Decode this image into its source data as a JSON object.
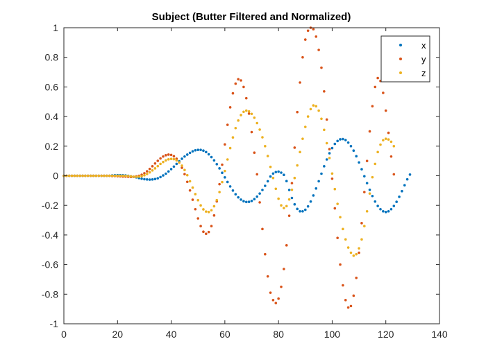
{
  "chart_data": {
    "type": "scatter",
    "title": "Subject (Butter Filtered and Normalized)",
    "xlabel": "",
    "ylabel": "",
    "xlim": [
      0,
      140
    ],
    "ylim": [
      -1,
      1
    ],
    "xticks": [
      0,
      20,
      40,
      60,
      80,
      100,
      120,
      140
    ],
    "yticks": [
      -1,
      -0.8,
      -0.6,
      -0.4,
      -0.2,
      0,
      0.2,
      0.4,
      0.6,
      0.8,
      1
    ],
    "xtick_labels": [
      "0",
      "20",
      "40",
      "60",
      "80",
      "100",
      "120",
      "140"
    ],
    "ytick_labels": [
      "-1",
      "-0.8",
      "-0.6",
      "-0.4",
      "-0.2",
      "0",
      "0.2",
      "0.4",
      "0.6",
      "0.8",
      "1"
    ],
    "grid": false,
    "legend_position": "top-right",
    "x": [
      0,
      1,
      2,
      3,
      4,
      5,
      6,
      7,
      8,
      9,
      10,
      11,
      12,
      13,
      14,
      15,
      16,
      17,
      18,
      19,
      20,
      21,
      22,
      23,
      24,
      25,
      26,
      27,
      28,
      29,
      30,
      31,
      32,
      33,
      34,
      35,
      36,
      37,
      38,
      39,
      40,
      41,
      42,
      43,
      44,
      45,
      46,
      47,
      48,
      49,
      50,
      51,
      52,
      53,
      54,
      55,
      56,
      57,
      58,
      59,
      60,
      61,
      62,
      63,
      64,
      65,
      66,
      67,
      68,
      69,
      70,
      71,
      72,
      73,
      74,
      75,
      76,
      77,
      78,
      79,
      80,
      81,
      82,
      83,
      84,
      85,
      86,
      87,
      88,
      89,
      90,
      91,
      92,
      93,
      94,
      95,
      96,
      97,
      98,
      99,
      100,
      101,
      102,
      103,
      104,
      105,
      106,
      107,
      108,
      109,
      110,
      111,
      112,
      113,
      114,
      115,
      116,
      117,
      118,
      119,
      120,
      121,
      122,
      123,
      124,
      125,
      126,
      127,
      128,
      129
    ],
    "series": [
      {
        "name": "x",
        "color": "#0072BD",
        "values": [
          0,
          0,
          0,
          0,
          0,
          0,
          0,
          0,
          0,
          0,
          0,
          0,
          0,
          0,
          0,
          0,
          0,
          0,
          0.002,
          0.003,
          0.004,
          0.004,
          0.003,
          0.002,
          0,
          -0.003,
          -0.007,
          -0.011,
          -0.016,
          -0.02,
          -0.023,
          -0.025,
          -0.026,
          -0.025,
          -0.022,
          -0.017,
          -0.009,
          0.002,
          0.014,
          0.029,
          0.045,
          0.062,
          0.08,
          0.098,
          0.115,
          0.13,
          0.143,
          0.155,
          0.165,
          0.172,
          0.175,
          0.175,
          0.17,
          0.16,
          0.145,
          0.126,
          0.104,
          0.078,
          0.05,
          0.02,
          -0.011,
          -0.042,
          -0.072,
          -0.1,
          -0.125,
          -0.146,
          -0.161,
          -0.172,
          -0.177,
          -0.176,
          -0.17,
          -0.158,
          -0.141,
          -0.12,
          -0.096,
          -0.068,
          -0.037,
          -0.005,
          0.015,
          0.025,
          0.028,
          0.021,
          0.006,
          -0.036,
          -0.096,
          -0.15,
          -0.193,
          -0.224,
          -0.24,
          -0.24,
          -0.23,
          -0.207,
          -0.174,
          -0.133,
          -0.086,
          -0.037,
          0.014,
          0.064,
          0.11,
          0.152,
          0.187,
          0.215,
          0.235,
          0.246,
          0.248,
          0.241,
          0.224,
          0.2,
          0.17,
          0.132,
          0.09,
          0.044,
          -0.003,
          -0.05,
          -0.095,
          -0.137,
          -0.174,
          -0.204,
          -0.226,
          -0.24,
          -0.245,
          -0.24,
          -0.226,
          -0.204,
          -0.176,
          -0.142,
          -0.104,
          -0.064,
          -0.024,
          0.008
        ]
      },
      {
        "name": "y",
        "color": "#D95319",
        "values": [
          0,
          0,
          0,
          0,
          0,
          0,
          0,
          0,
          0,
          0,
          0,
          0,
          0,
          0,
          0,
          0,
          0,
          0,
          -0.002,
          -0.002,
          -0.003,
          -0.004,
          -0.005,
          -0.006,
          -0.007,
          -0.008,
          -0.007,
          -0.004,
          0,
          0.007,
          0.017,
          0.03,
          0.046,
          0.064,
          0.083,
          0.101,
          0.117,
          0.13,
          0.139,
          0.143,
          0.141,
          0.132,
          0.115,
          0.089,
          0.054,
          0.011,
          -0.041,
          -0.099,
          -0.162,
          -0.226,
          -0.288,
          -0.34,
          -0.378,
          -0.392,
          -0.38,
          -0.34,
          -0.268,
          -0.173,
          -0.057,
          0.075,
          0.212,
          0.344,
          0.462,
          0.557,
          0.622,
          0.652,
          0.644,
          0.6,
          0.524,
          0.42,
          0.295,
          0.156,
          0.01,
          -0.18,
          -0.36,
          -0.53,
          -0.68,
          -0.79,
          -0.84,
          -0.86,
          -0.83,
          -0.75,
          -0.63,
          -0.47,
          -0.27,
          -0.05,
          0.19,
          0.43,
          0.63,
          0.8,
          0.92,
          0.98,
          1.0,
          0.99,
          0.94,
          0.85,
          0.73,
          0.57,
          0.38,
          0.18,
          -0.02,
          -0.22,
          -0.42,
          -0.6,
          -0.74,
          -0.84,
          -0.89,
          -0.88,
          -0.81,
          -0.69,
          -0.52,
          -0.32,
          -0.11,
          0.1,
          0.3,
          0.47,
          0.6,
          0.66,
          0.64,
          0.56,
          0.44,
          0.29,
          0.13,
          0.01
        ]
      },
      {
        "name": "z",
        "color": "#EDB120",
        "values": [
          0,
          0,
          0,
          0,
          0,
          0,
          0,
          0,
          0,
          0,
          0,
          0,
          0,
          0,
          0,
          0,
          0,
          0,
          0,
          0,
          0,
          0,
          0,
          -0.001,
          -0.002,
          -0.004,
          -0.006,
          -0.007,
          -0.006,
          -0.003,
          0.003,
          0.012,
          0.023,
          0.036,
          0.05,
          0.065,
          0.08,
          0.093,
          0.104,
          0.111,
          0.114,
          0.112,
          0.104,
          0.09,
          0.068,
          0.039,
          0.004,
          -0.037,
          -0.08,
          -0.124,
          -0.165,
          -0.2,
          -0.227,
          -0.242,
          -0.245,
          -0.233,
          -0.206,
          -0.165,
          -0.11,
          -0.043,
          0.032,
          0.11,
          0.187,
          0.259,
          0.322,
          0.373,
          0.41,
          0.432,
          0.44,
          0.435,
          0.418,
          0.392,
          0.356,
          0.312,
          0.26,
          0.2,
          0.133,
          0.06,
          -0.015,
          -0.088,
          -0.155,
          -0.2,
          -0.218,
          -0.205,
          -0.16,
          -0.095,
          -0.015,
          0.07,
          0.16,
          0.25,
          0.33,
          0.4,
          0.45,
          0.475,
          0.47,
          0.44,
          0.385,
          0.31,
          0.22,
          0.12,
          0.015,
          -0.09,
          -0.19,
          -0.28,
          -0.36,
          -0.43,
          -0.485,
          -0.52,
          -0.54,
          -0.53,
          -0.49,
          -0.43,
          -0.34,
          -0.24,
          -0.12,
          -0.01,
          0.08,
          0.16,
          0.21,
          0.24,
          0.25,
          0.245,
          0.23,
          0.2
        ]
      }
    ]
  }
}
